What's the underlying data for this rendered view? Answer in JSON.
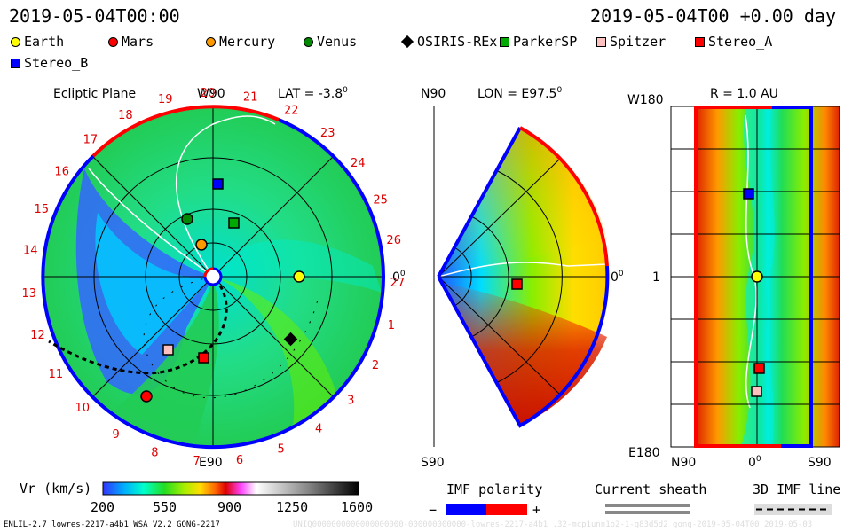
{
  "header": {
    "left_time": "2019-05-04T00:00",
    "right_time": "2019-05-04T00 +0.00 day"
  },
  "legend": [
    {
      "label": "Earth",
      "shape": "circle",
      "color": "#ffff00"
    },
    {
      "label": "Mars",
      "shape": "circle",
      "color": "#ff0000"
    },
    {
      "label": "Mercury",
      "shape": "circle",
      "color": "#ff9900"
    },
    {
      "label": "Venus",
      "shape": "circle",
      "color": "#008800"
    },
    {
      "label": "OSIRIS-REx",
      "shape": "diamond",
      "color": "#000000"
    },
    {
      "label": "ParkerSP",
      "shape": "square",
      "color": "#00aa00"
    },
    {
      "label": "Spitzer",
      "shape": "square",
      "color": "#ffc0c0"
    },
    {
      "label": "Stereo_A",
      "shape": "square",
      "color": "#ff0000"
    },
    {
      "label": "Stereo_B",
      "shape": "square",
      "color": "#0000ff"
    }
  ],
  "panel_ecliptic": {
    "title": "Ecliptic Plane",
    "lat": "LAT = -3.8",
    "lat_sup": "0",
    "top_label": "W90",
    "bottom_label": "E90",
    "right_label": "0",
    "right_sup": "0",
    "ticks": [
      "27",
      "1",
      "2",
      "3",
      "4",
      "5",
      "6",
      "7",
      "8",
      "9",
      "10",
      "11",
      "12",
      "13",
      "14",
      "15",
      "16",
      "17",
      "18",
      "19",
      "20",
      "21",
      "22",
      "23",
      "24",
      "25",
      "26"
    ]
  },
  "panel_meridional": {
    "lon": "LON = E97.5",
    "lon_sup": "0",
    "top_label": "N90",
    "bottom_label": "S90",
    "right_label": "0",
    "right_sup": "0"
  },
  "panel_radius": {
    "title": "R = 1.0 AU",
    "top_left": "W180",
    "middle_left": "1",
    "bottom_left": "E180",
    "bottom_labels": [
      "N90",
      "0",
      "S90"
    ],
    "bottom_mid_sup": "0"
  },
  "colorbar": {
    "label": "Vr (km/s)",
    "ticks": [
      "200",
      "550",
      "900",
      "1250",
      "1600"
    ]
  },
  "imf": {
    "label": "IMF polarity",
    "minus": "−",
    "plus": "+"
  },
  "sheath": {
    "label": "Current sheath"
  },
  "imf3d": {
    "label": "3D IMF line"
  },
  "footer": {
    "left": "ENLIL-2.7 lowres-2217-a4b1 WSA_V2.2 GONG-2217",
    "right": "UNIQ0000000000000000000-000000000000-lowres-2217-a4b1 .32-mcp1unn1o2-1-g83d5d2 gong-2019-05-04T00   2019-05-03"
  },
  "colors": {
    "accent_red": "#ff0000",
    "accent_blue": "#0000ff",
    "tick_red": "#dd0000"
  }
}
